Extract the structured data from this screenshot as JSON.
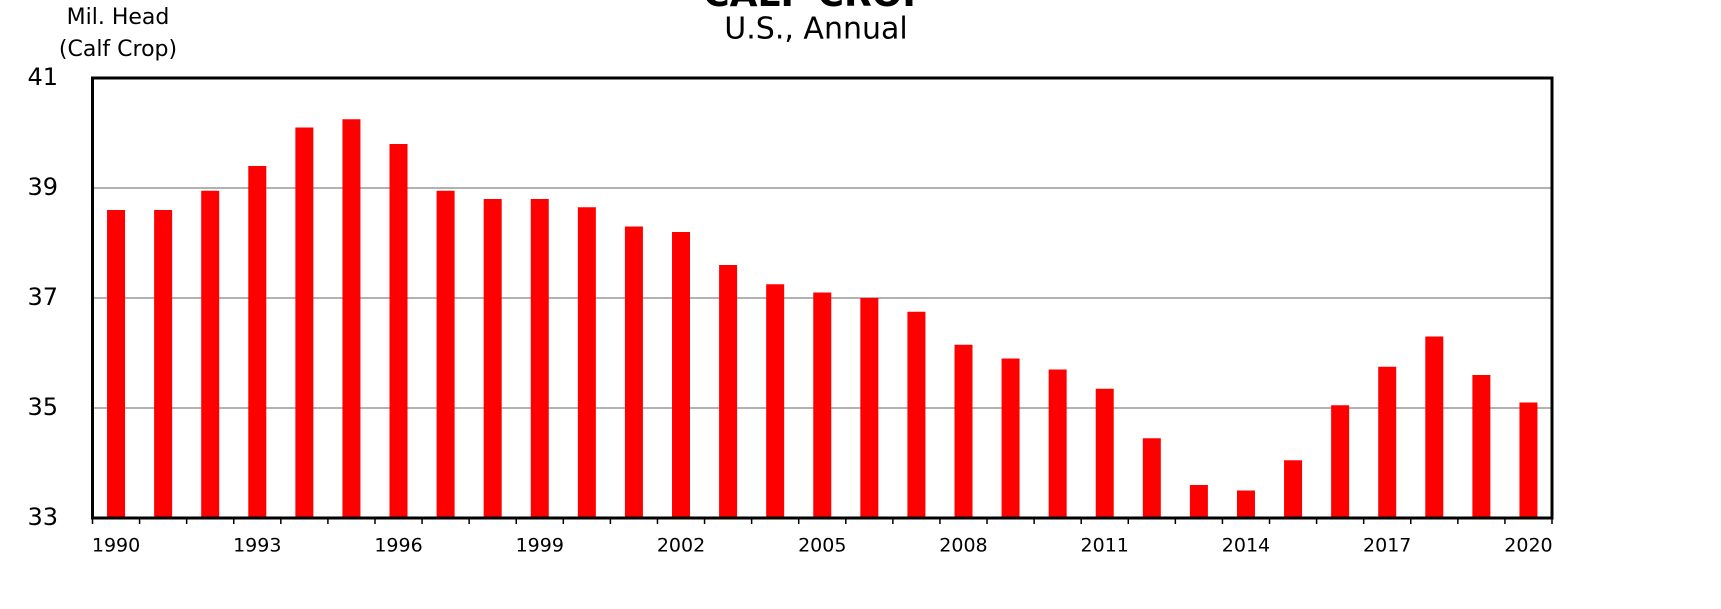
{
  "chart_data": {
    "type": "bar",
    "title": "CALF CROP",
    "subtitle": "U.S., Annual",
    "y_label": [
      "Mil. Head",
      "(Calf Crop)"
    ],
    "categories": [
      "1990",
      null,
      null,
      "1993",
      null,
      null,
      "1996",
      null,
      null,
      "1999",
      null,
      null,
      "2002",
      null,
      null,
      "2005",
      null,
      null,
      "2008",
      null,
      null,
      "2011",
      null,
      null,
      "2014",
      null,
      null,
      "2017",
      null,
      null,
      "2020"
    ],
    "values": [
      38.6,
      38.6,
      38.95,
      39.4,
      40.1,
      40.25,
      39.8,
      38.95,
      38.8,
      38.8,
      38.65,
      38.3,
      38.2,
      37.6,
      37.25,
      37.1,
      37.0,
      36.75,
      36.15,
      35.9,
      35.7,
      35.35,
      34.45,
      33.6,
      33.5,
      34.05,
      35.05,
      35.75,
      36.3,
      35.6,
      35.1
    ],
    "color": "#ff0000",
    "ylim": [
      33,
      41
    ],
    "yticks": [
      33,
      35,
      37,
      39,
      41
    ],
    "grid": true
  }
}
